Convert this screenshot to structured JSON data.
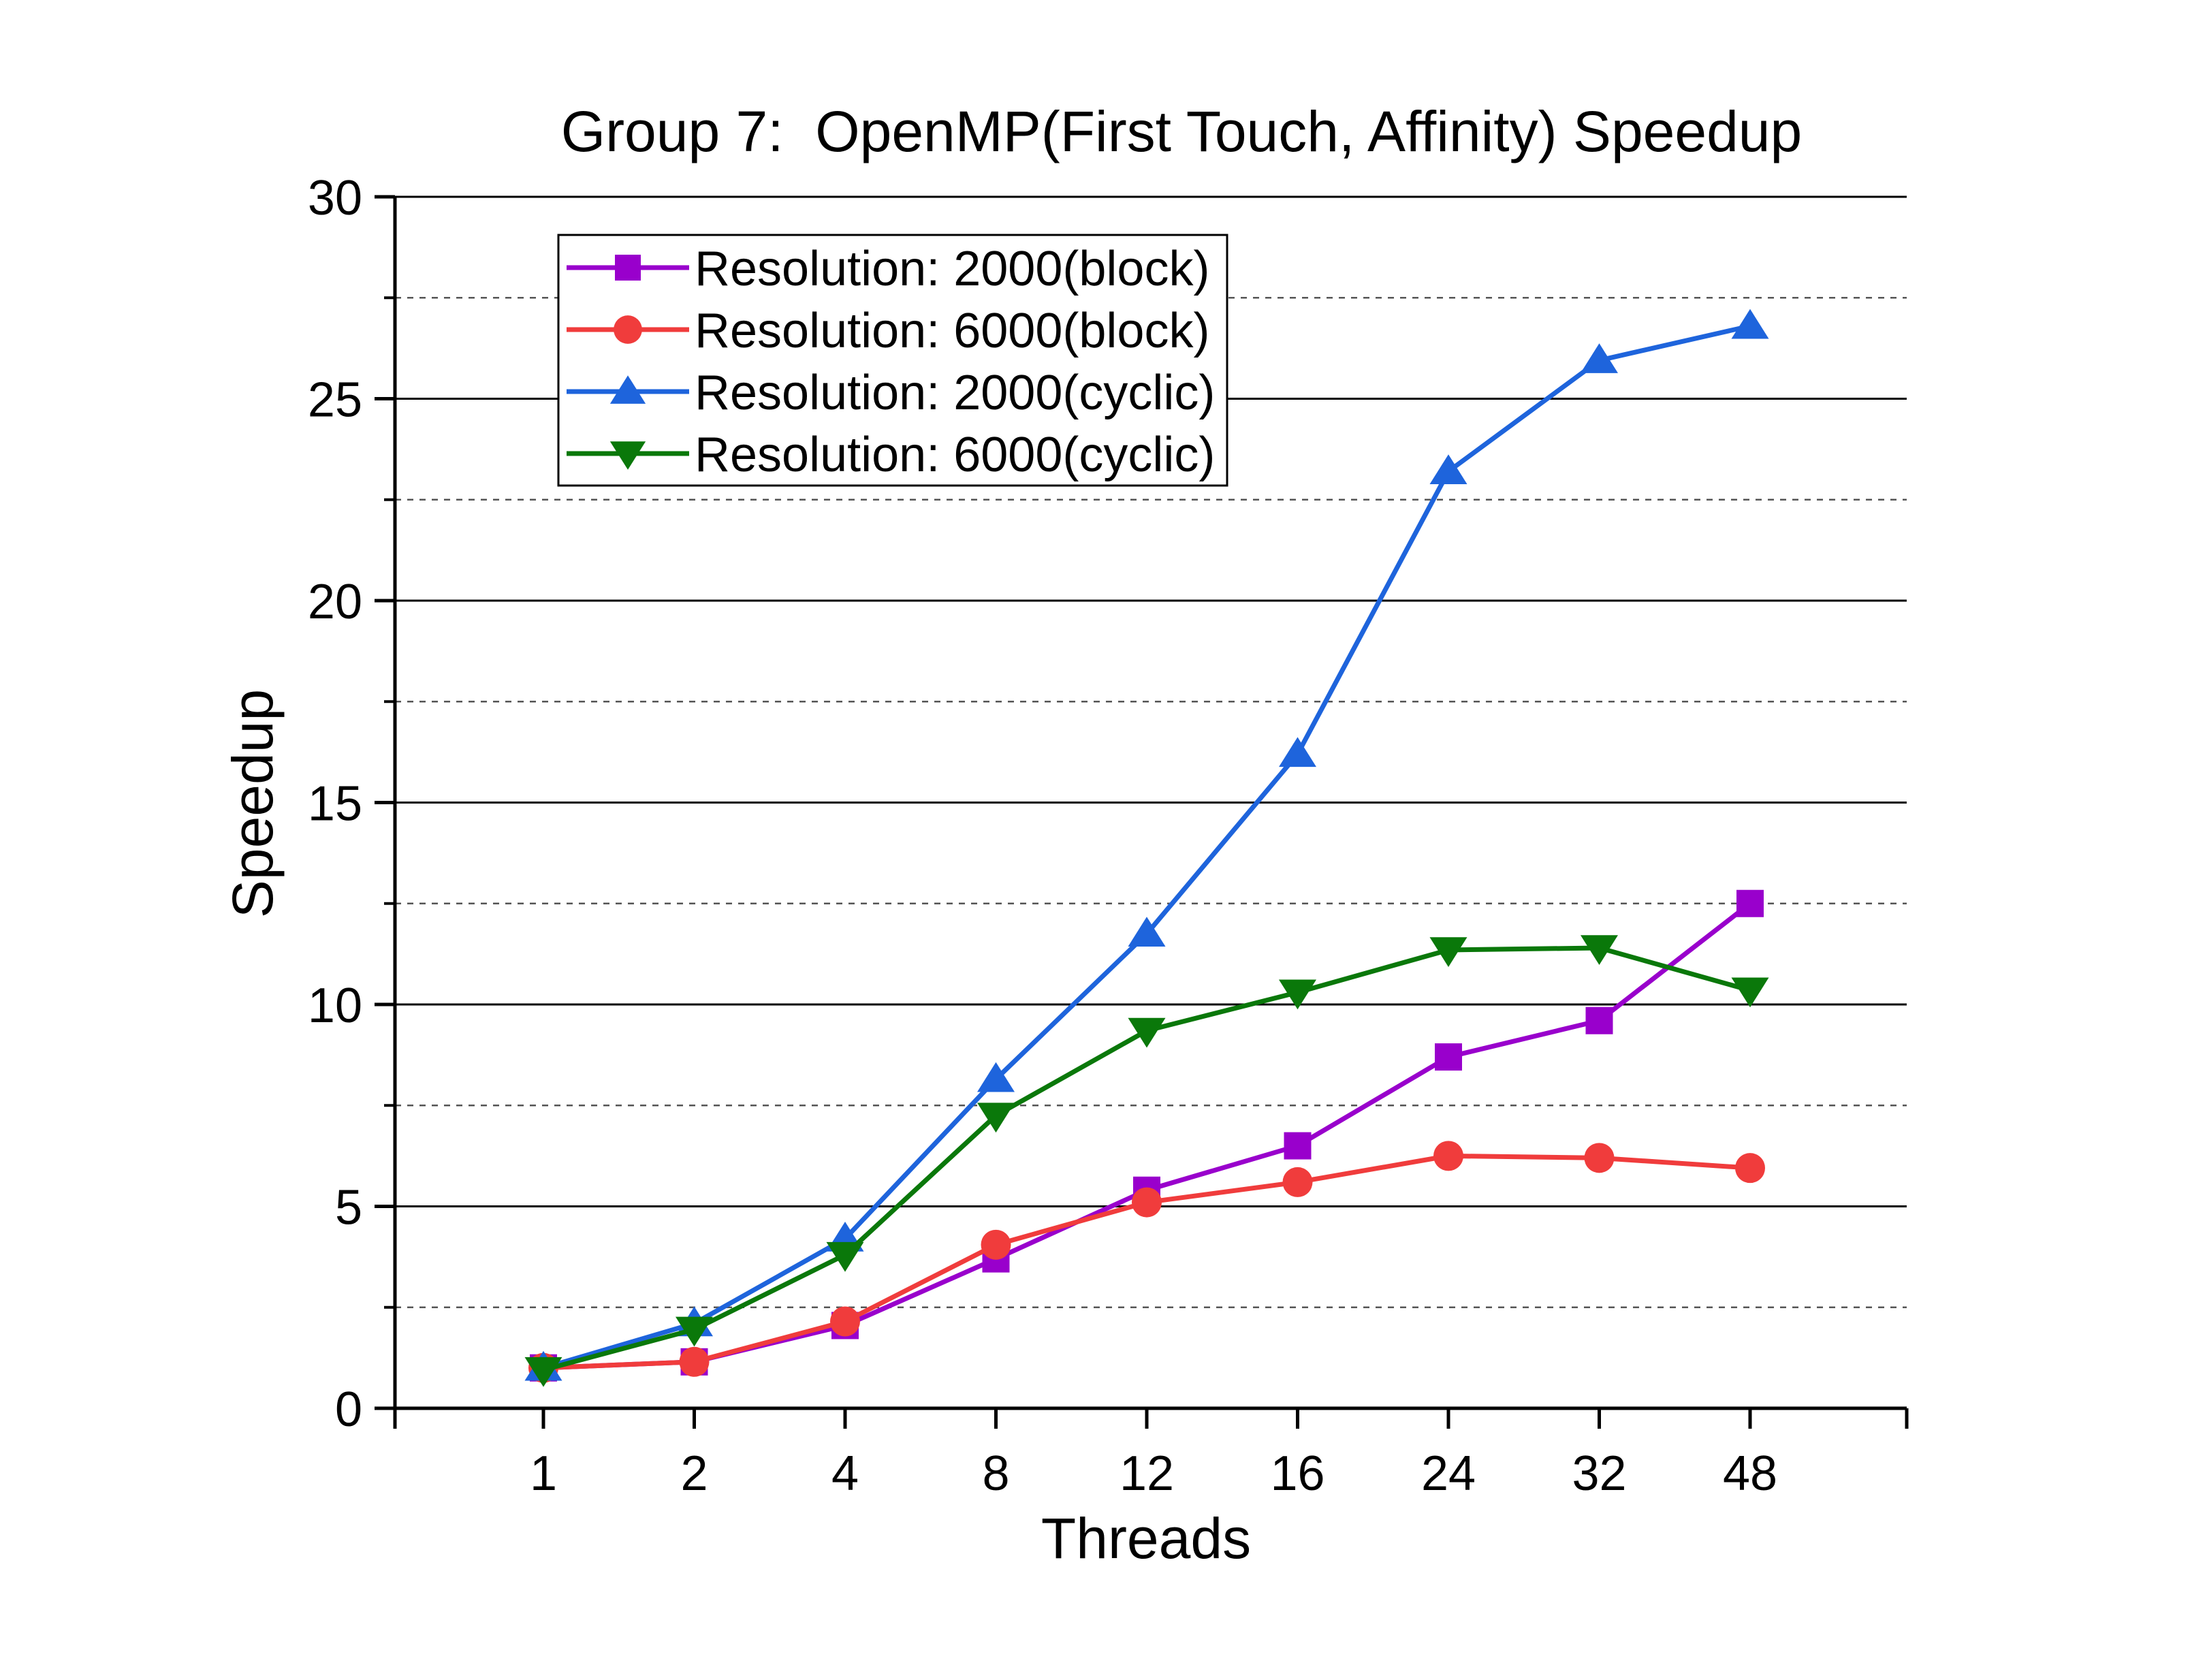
{
  "chart_data": {
    "type": "line",
    "title": "Group 7:  OpenMP(First Touch, Affinity) Speedup",
    "xlabel": "Threads",
    "ylabel": "Speedup",
    "categories": [
      "1",
      "2",
      "4",
      "8",
      "12",
      "16",
      "24",
      "32",
      "48"
    ],
    "ylim": [
      0,
      30
    ],
    "yticks": [
      0,
      5,
      10,
      15,
      20,
      25,
      30
    ],
    "y_minor_gridlines": [
      2.5,
      7.5,
      12.5,
      17.5,
      22.5,
      27.5
    ],
    "grid": "major solid, minor dashed (horizontal)",
    "legend_position": "top-left",
    "series": [
      {
        "name": "Resolution: 2000(block)",
        "color": "#9900CC",
        "marker": "square",
        "values": [
          1.0,
          1.15,
          2.05,
          3.7,
          5.4,
          6.5,
          8.7,
          9.6,
          12.5
        ]
      },
      {
        "name": "Resolution: 6000(block)",
        "color": "#F03C3C",
        "marker": "circle",
        "values": [
          1.0,
          1.15,
          2.15,
          4.05,
          5.1,
          5.6,
          6.25,
          6.2,
          5.95
        ]
      },
      {
        "name": "Resolution: 2000(cyclic)",
        "color": "#1E64DC",
        "marker": "triangle-up",
        "values": [
          1.0,
          2.1,
          4.2,
          8.15,
          11.75,
          16.2,
          23.2,
          25.95,
          26.8
        ]
      },
      {
        "name": "Resolution: 6000(cyclic)",
        "color": "#0A780A",
        "marker": "triangle-down",
        "values": [
          0.95,
          1.95,
          3.8,
          7.25,
          9.35,
          10.3,
          11.35,
          11.4,
          10.35
        ]
      }
    ]
  }
}
